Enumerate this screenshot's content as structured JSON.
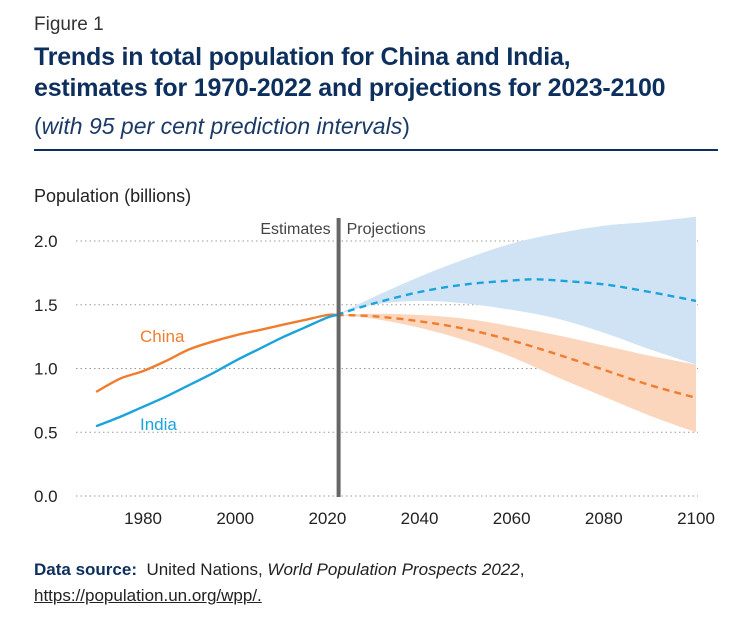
{
  "figure_label": "Figure 1",
  "title_line1": "Trends in total population for China and India,",
  "title_line2": "estimates for 1970-2022 and projections for 2023-2100",
  "subtitle_open": "(",
  "subtitle_text": "with 95 per cent prediction intervals",
  "subtitle_close": ")",
  "source": {
    "label": "Data source:",
    "org": "United Nations,",
    "publication": "World Population Prospects 2022",
    "sep": ",",
    "url": "https://population.un.org/wpp/."
  },
  "colors": {
    "china": "#f07d2e",
    "india": "#1ba3dc",
    "china_band": "#fbd6bd",
    "india_band": "#cfe3f5",
    "divider": "#666666",
    "title": "#0d2f5e"
  },
  "chart_data": {
    "type": "line",
    "ylabel": "Population (billions)",
    "ylim": [
      0,
      2.0
    ],
    "yticks": [
      "0.0",
      "0.5",
      "1.0",
      "1.5",
      "2.0"
    ],
    "xlim": [
      1970,
      2100
    ],
    "xticks": [
      "1980",
      "2000",
      "2020",
      "2040",
      "2060",
      "2080",
      "2100"
    ],
    "grid": "horizontal-dotted",
    "divider_year": 2022,
    "divider_labels": {
      "left": "Estimates",
      "right": "Projections"
    },
    "series": [
      {
        "name": "China",
        "estimates": {
          "x": [
            1970,
            1975,
            1980,
            1985,
            1990,
            1995,
            2000,
            2005,
            2010,
            2015,
            2020,
            2022
          ],
          "y": [
            0.82,
            0.92,
            0.98,
            1.06,
            1.15,
            1.21,
            1.26,
            1.3,
            1.34,
            1.38,
            1.42,
            1.42
          ]
        },
        "projection": {
          "x": [
            2022,
            2030,
            2040,
            2050,
            2060,
            2070,
            2080,
            2090,
            2100
          ],
          "y": [
            1.42,
            1.41,
            1.37,
            1.31,
            1.22,
            1.11,
            0.99,
            0.87,
            0.77
          ]
        },
        "interval": {
          "x": [
            2022,
            2030,
            2040,
            2050,
            2060,
            2070,
            2080,
            2090,
            2100
          ],
          "lower": [
            1.42,
            1.39,
            1.32,
            1.22,
            1.09,
            0.93,
            0.78,
            0.63,
            0.5
          ],
          "upper": [
            1.42,
            1.43,
            1.42,
            1.39,
            1.33,
            1.26,
            1.18,
            1.1,
            1.03
          ]
        }
      },
      {
        "name": "India",
        "estimates": {
          "x": [
            1970,
            1975,
            1980,
            1985,
            1990,
            1995,
            2000,
            2005,
            2010,
            2015,
            2020,
            2022
          ],
          "y": [
            0.55,
            0.62,
            0.7,
            0.78,
            0.87,
            0.96,
            1.06,
            1.15,
            1.24,
            1.32,
            1.4,
            1.42
          ]
        },
        "projection": {
          "x": [
            2022,
            2030,
            2040,
            2050,
            2060,
            2065,
            2070,
            2080,
            2090,
            2100
          ],
          "y": [
            1.42,
            1.51,
            1.6,
            1.66,
            1.69,
            1.7,
            1.69,
            1.66,
            1.6,
            1.53
          ]
        },
        "interval": {
          "x": [
            2022,
            2030,
            2040,
            2050,
            2060,
            2070,
            2080,
            2090,
            2100
          ],
          "lower": [
            1.42,
            1.5,
            1.53,
            1.51,
            1.46,
            1.39,
            1.28,
            1.15,
            1.03
          ],
          "upper": [
            1.42,
            1.56,
            1.72,
            1.86,
            1.98,
            2.06,
            2.12,
            2.15,
            2.19
          ]
        }
      }
    ]
  }
}
